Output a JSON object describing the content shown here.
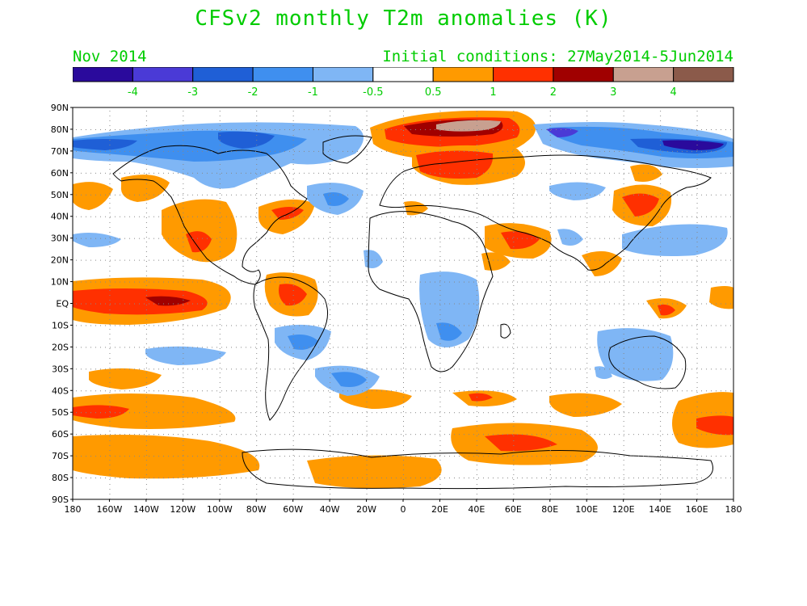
{
  "title": "CFSv2 monthly T2m anomalies (K)",
  "month": "Nov 2014",
  "initial_conditions": "Initial conditions: 27May2014-5Jun2014",
  "text_color": "#00cc00",
  "colorbar": {
    "colors": [
      "#2a0a9c",
      "#4a3ad6",
      "#1f5fd6",
      "#3f8fef",
      "#7fb6f5",
      "#ffffff",
      "#ff9a00",
      "#ff3000",
      "#a00000",
      "#c8a090",
      "#8b5a4a"
    ],
    "labels": [
      "-4",
      "-3",
      "-2",
      "-1",
      "-0.5",
      "0.5",
      "1",
      "2",
      "3",
      "4"
    ]
  },
  "map": {
    "lat_labels": [
      "90N",
      "80N",
      "70N",
      "60N",
      "50N",
      "40N",
      "30N",
      "20N",
      "10N",
      "EQ",
      "10S",
      "20S",
      "30S",
      "40S",
      "50S",
      "60S",
      "70S",
      "80S",
      "90S"
    ],
    "lon_labels": [
      "180",
      "160W",
      "140W",
      "120W",
      "100W",
      "80W",
      "60W",
      "40W",
      "20W",
      "0",
      "20E",
      "40E",
      "60E",
      "80E",
      "100E",
      "120E",
      "140E",
      "160E",
      "180"
    ]
  }
}
